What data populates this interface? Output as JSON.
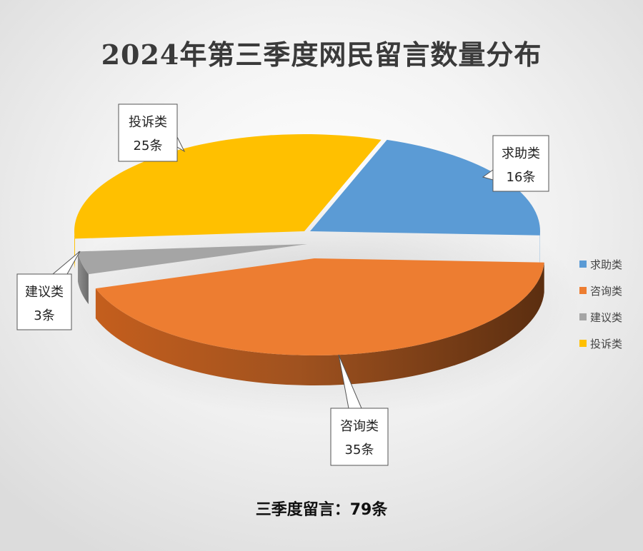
{
  "title": "2024年第三季度网民留言数量分布",
  "footer": "三季度留言：79条",
  "chart_data": {
    "type": "pie",
    "title": "2024年第三季度网民留言数量分布",
    "total": 79,
    "unit": "条",
    "slices": [
      {
        "name": "求助类",
        "value": 16,
        "color": "#5B9BD5",
        "label": "求助类",
        "value_label": "16条"
      },
      {
        "name": "咨询类",
        "value": 35,
        "color": "#ED7D31",
        "label": "咨询类",
        "value_label": "35条"
      },
      {
        "name": "建议类",
        "value": 3,
        "color": "#A5A5A5",
        "label": "建议类",
        "value_label": "3条"
      },
      {
        "name": "投诉类",
        "value": 25,
        "color": "#FFC000",
        "label": "投诉类",
        "value_label": "25条"
      }
    ],
    "legend": [
      "求助类",
      "咨询类",
      "建议类",
      "投诉类"
    ],
    "legend_position": "right",
    "style": "3d-exploded-ellipse"
  }
}
